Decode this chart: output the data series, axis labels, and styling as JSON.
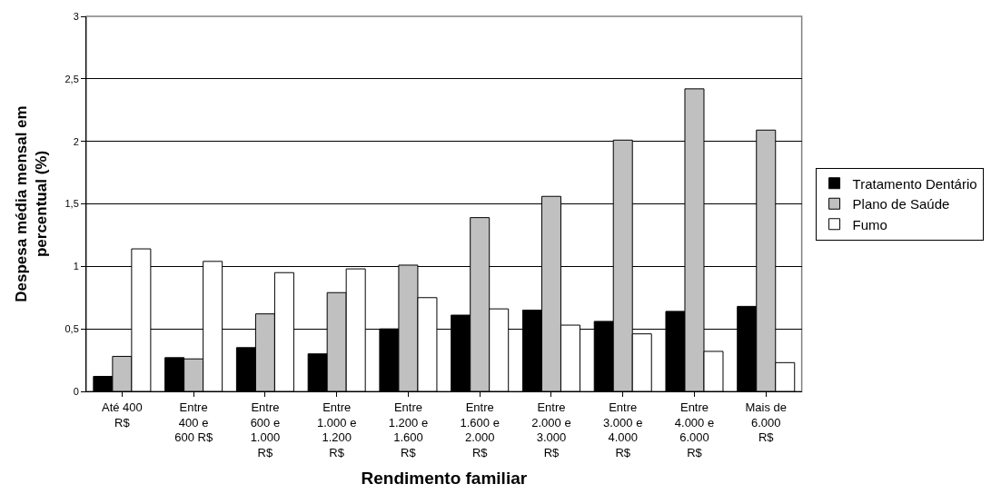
{
  "chart_data": {
    "type": "bar",
    "xlabel": "Rendimento familiar",
    "ylabel": "Despesa média mensal em percentual (%)",
    "categories": [
      "Até 400 R$",
      "Entre 400 e 600 R$",
      "Entre 600 e 1.000 R$",
      "Entre 1.000 e 1.200 R$",
      "Entre 1.200 e 1.600 R$",
      "Entre 1.600 e 2.000 R$",
      "Entre 2.000 e 3.000 R$",
      "Entre 3.000 e 4.000 R$",
      "Entre 4.000 e 6.000 R$",
      "Mais de 6.000 R$"
    ],
    "series": [
      {
        "name": "Tratamento Dentário",
        "color": "#000000",
        "values": [
          0.12,
          0.27,
          0.35,
          0.3,
          0.5,
          0.61,
          0.65,
          0.56,
          0.64,
          0.68
        ]
      },
      {
        "name": "Plano de Saúde",
        "color": "#c0c0c0",
        "values": [
          0.28,
          0.26,
          0.62,
          0.79,
          1.01,
          1.39,
          1.56,
          2.01,
          2.42,
          2.09
        ]
      },
      {
        "name": "Fumo",
        "color": "#ffffff",
        "values": [
          1.14,
          1.04,
          0.95,
          0.98,
          0.75,
          0.66,
          0.53,
          0.46,
          0.32,
          0.23
        ]
      }
    ],
    "ylim": [
      0,
      3
    ],
    "yticks": [
      0,
      {
        "value": 0.5,
        "label": "0,5"
      },
      1,
      {
        "value": 1.5,
        "label": "1,5"
      },
      2,
      {
        "value": 2.5,
        "label": "2,5"
      },
      3
    ],
    "grid": "y",
    "legend": "right"
  }
}
